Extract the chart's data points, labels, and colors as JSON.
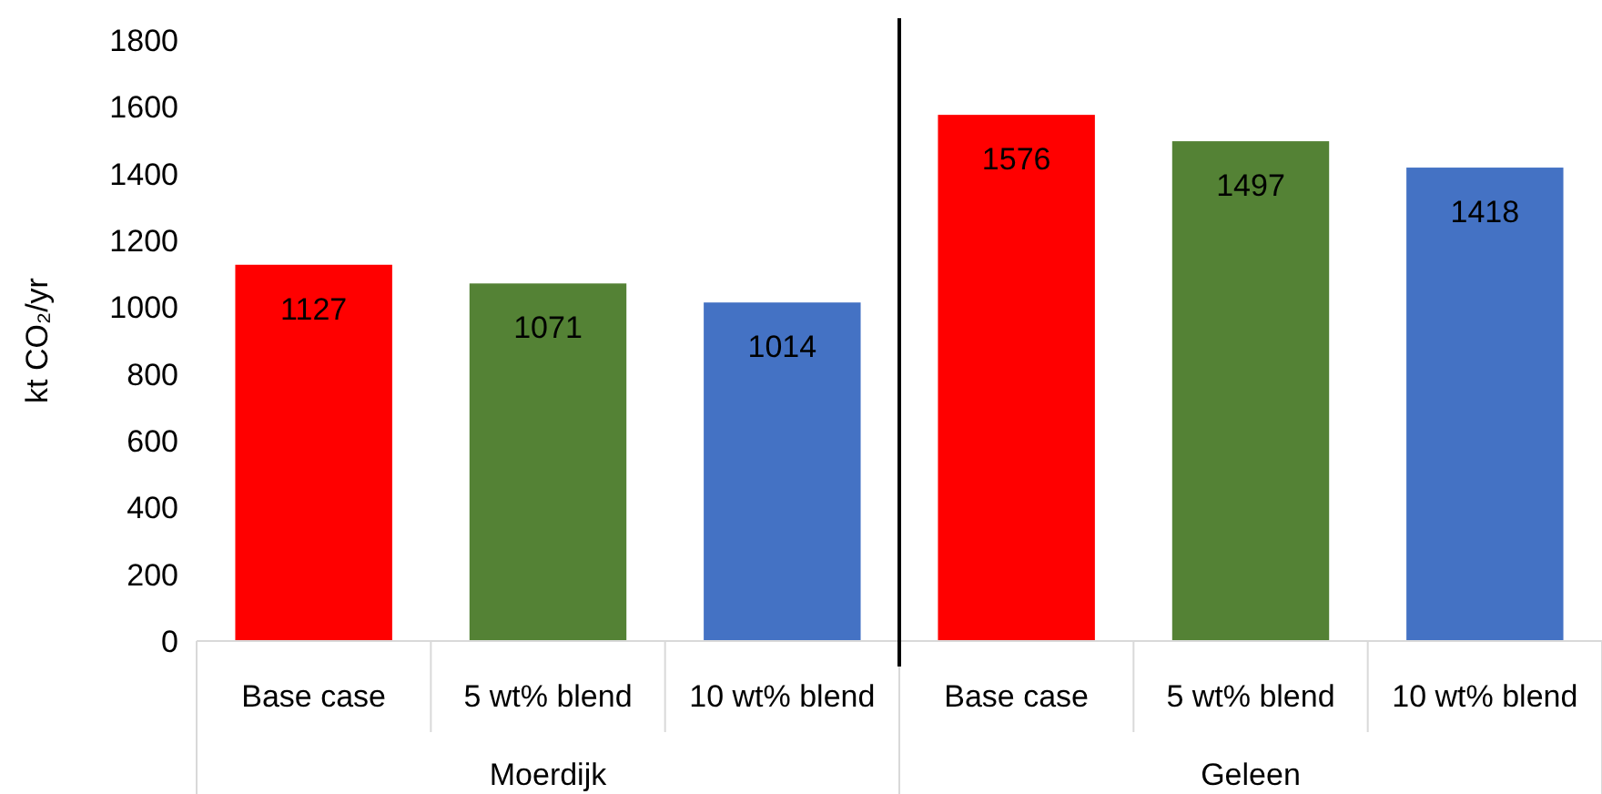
{
  "chart_data": {
    "type": "bar",
    "ylabel": "kt CO₂/yr",
    "categories": [
      "Base case",
      "5 wt% blend",
      "10 wt% blend",
      "Base case",
      "5 wt% blend",
      "10 wt% blend"
    ],
    "values": [
      1127,
      1071,
      1014,
      1576,
      1497,
      1418
    ],
    "colors": [
      "#ff0000",
      "#548235",
      "#4472c4",
      "#ff0000",
      "#548235",
      "#4472c4"
    ],
    "ylim": [
      0,
      1800
    ],
    "yticks": [
      0,
      200,
      400,
      600,
      800,
      1000,
      1200,
      1400,
      1600,
      1800
    ],
    "data_labels": true,
    "annotations": [
      "Moerdijk",
      "Geleen"
    ]
  }
}
